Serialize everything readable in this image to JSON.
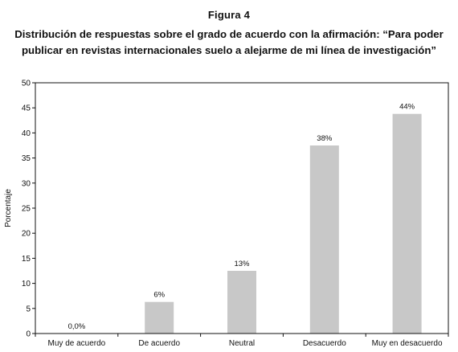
{
  "figure": {
    "label": "Figura 4",
    "title_line1": "Distribución de respuestas sobre el grado de acuerdo con la afirmación: “Para poder",
    "title_line2": "publicar en revistas internacionales suelo a alejarme de mi línea de investigación”"
  },
  "chart_data": {
    "type": "bar",
    "categories": [
      "Muy de acuerdo",
      "De acuerdo",
      "Neutral",
      "Desacuerdo",
      "Muy en desacuerdo"
    ],
    "values": [
      0,
      6.3,
      12.5,
      37.5,
      43.8
    ],
    "data_labels": [
      "0,0%",
      "6%",
      "13%",
      "38%",
      "44%"
    ],
    "ylabel": "Porcentaje",
    "ylim": [
      0,
      50
    ],
    "yticks": [
      0,
      5,
      10,
      15,
      20,
      25,
      30,
      35,
      40,
      45,
      50
    ],
    "grid": false,
    "legend": "none",
    "bar_color": "#c8c8c8"
  }
}
